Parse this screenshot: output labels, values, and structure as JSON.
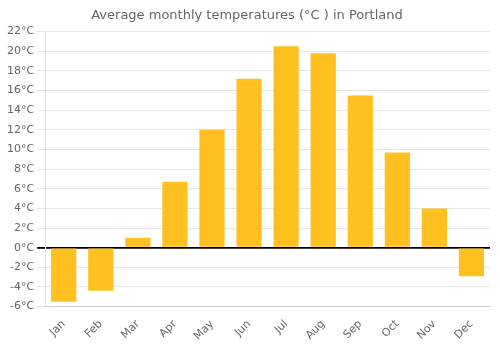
{
  "chart_data": {
    "type": "bar",
    "title": "Average monthly temperatures (°C ) in Portland",
    "categories": [
      "Jan",
      "Feb",
      "Mar",
      "Apr",
      "May",
      "Jun",
      "Jul",
      "Aug",
      "Sep",
      "Oct",
      "Nov",
      "Dec"
    ],
    "values": [
      -5.5,
      -4.4,
      1.0,
      6.7,
      12.0,
      17.2,
      20.5,
      19.8,
      15.5,
      9.7,
      4.0,
      -2.9
    ],
    "color": "#FFC020",
    "ylim": [
      -6,
      22
    ],
    "yticks": [
      {
        "value": -6,
        "label": "-6°C"
      },
      {
        "value": -4,
        "label": "-4°C"
      },
      {
        "value": -2,
        "label": "-2°C"
      },
      {
        "value": 0,
        "label": "0°C"
      },
      {
        "value": 2,
        "label": "2°C"
      },
      {
        "value": 4,
        "label": "4°C"
      },
      {
        "value": 6,
        "label": "6°C"
      },
      {
        "value": 8,
        "label": "8°C"
      },
      {
        "value": 10,
        "label": "10°C"
      },
      {
        "value": 12,
        "label": "12°C"
      },
      {
        "value": 14,
        "label": "14°C"
      },
      {
        "value": 16,
        "label": "16°C"
      },
      {
        "value": 18,
        "label": "18°C"
      },
      {
        "value": 20,
        "label": "20°C"
      },
      {
        "value": 22,
        "label": "22°C"
      }
    ],
    "grid": true
  }
}
